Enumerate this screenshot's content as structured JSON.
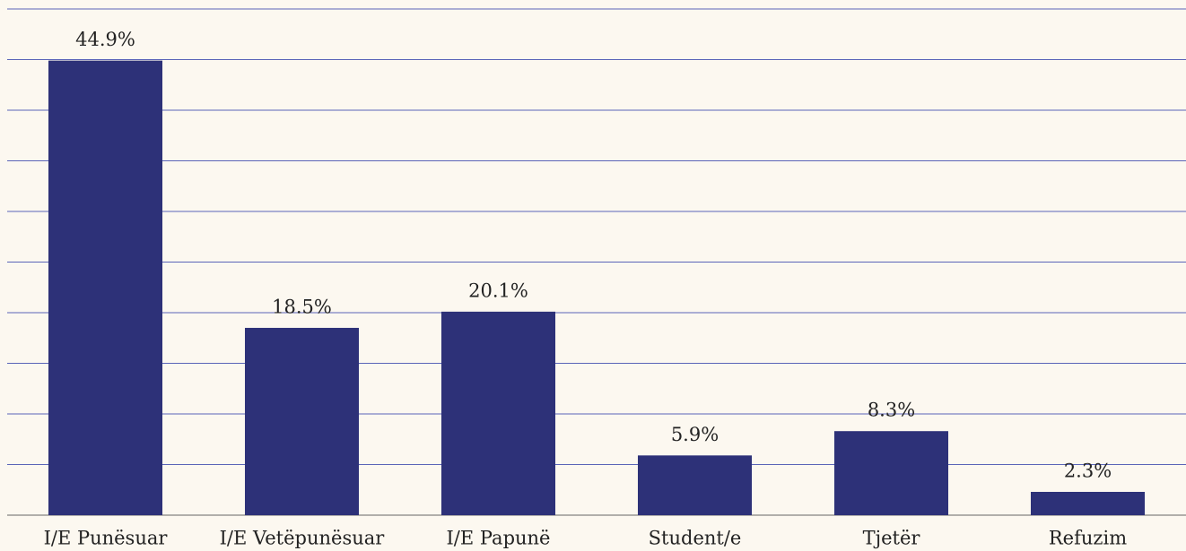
{
  "chart_data": {
    "type": "bar",
    "categories": [
      "I/E Punësuar",
      "I/E Vetëpunësuar",
      "I/E Papunë",
      "Student/e",
      "Tjetër",
      "Refuzim"
    ],
    "values": [
      44.9,
      18.5,
      20.1,
      5.9,
      8.3,
      2.3
    ],
    "value_labels": [
      "44.9%",
      "18.5%",
      "20.1%",
      "5.9%",
      "8.3%",
      "2.3%"
    ],
    "color": "#2d3178",
    "ylim": [
      0,
      50
    ],
    "yticks": [
      0,
      5,
      10,
      15,
      20,
      25,
      30,
      35,
      40,
      45,
      50
    ],
    "grid": true
  }
}
